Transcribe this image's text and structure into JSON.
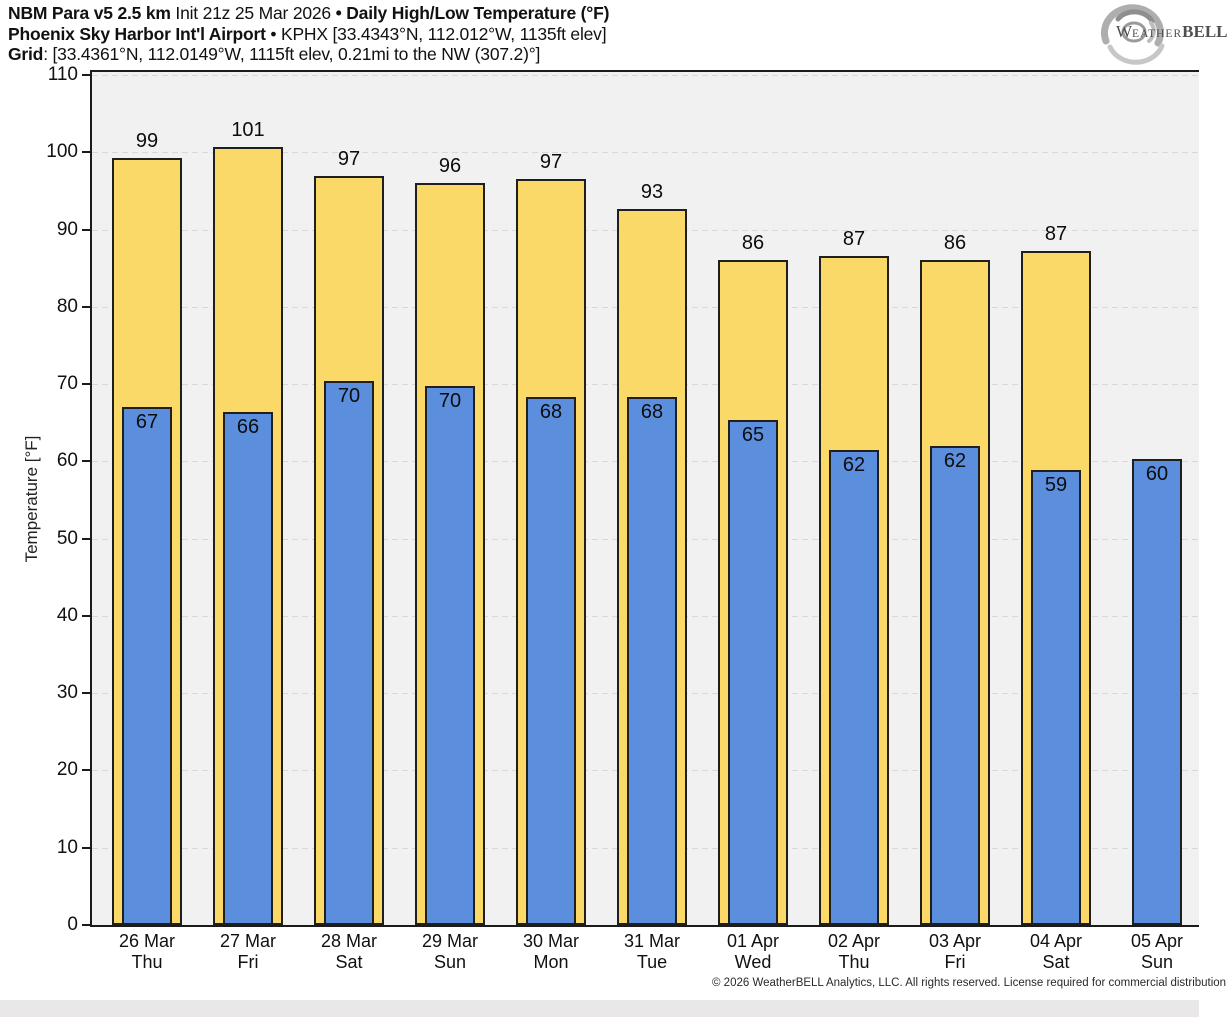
{
  "header": {
    "model": "NBM Para v5 2.5 km",
    "init": " Init 21z 25 Mar 2026 ",
    "bullet1": "•",
    "product": " Daily High/Low Temperature (°F)",
    "station": "Phoenix Sky Harbor Int'l Airport",
    "bullet2": " • ",
    "station_info": "KPHX [33.4343°N, 112.012°W, 1135ft elev]",
    "grid_label": "Grid",
    "grid_info": ": [33.4361°N, 112.0149°W, 1115ft elev, 0.21mi to the NW (307.2)°]"
  },
  "logo": {
    "w": "W",
    "eather": "EATHER",
    "bell": "BELL"
  },
  "chart_data": {
    "type": "bar",
    "title": "Daily High/Low Temperature (°F)",
    "ylabel": "Temperature [°F]",
    "ylim": [
      0,
      110
    ],
    "ytick_step": 10,
    "grid": true,
    "legend": "none",
    "categories": [
      {
        "date": "26 Mar",
        "day": "Thu"
      },
      {
        "date": "27 Mar",
        "day": "Fri"
      },
      {
        "date": "28 Mar",
        "day": "Sat"
      },
      {
        "date": "29 Mar",
        "day": "Sun"
      },
      {
        "date": "30 Mar",
        "day": "Mon"
      },
      {
        "date": "31 Mar",
        "day": "Tue"
      },
      {
        "date": "01 Apr",
        "day": "Wed"
      },
      {
        "date": "02 Apr",
        "day": "Thu"
      },
      {
        "date": "03 Apr",
        "day": "Fri"
      },
      {
        "date": "04 Apr",
        "day": "Sat"
      },
      {
        "date": "05 Apr",
        "day": "Sun"
      }
    ],
    "series": [
      {
        "name": "High",
        "color": "#fbd968",
        "labels": [
          99,
          101,
          97,
          96,
          97,
          93,
          86,
          87,
          86,
          87,
          null
        ],
        "values": [
          99.3,
          100.7,
          96.9,
          96.0,
          96.5,
          92.6,
          86.1,
          86.6,
          86.1,
          87.2,
          null
        ]
      },
      {
        "name": "Low",
        "color": "#5b8edd",
        "labels": [
          67,
          66,
          70,
          70,
          68,
          68,
          65,
          62,
          62,
          59,
          60
        ],
        "values": [
          67.0,
          66.4,
          70.4,
          69.8,
          68.3,
          68.3,
          65.4,
          61.5,
          62.0,
          58.9,
          60.3
        ]
      }
    ]
  },
  "colors": {
    "high": "#fbd968",
    "low": "#5b8edd",
    "bar_border": "#1f1f1f",
    "plot_bg": "#f2f1f1",
    "grid_line": "#d9d8d6",
    "axis": "#1b1b1b",
    "footer_strip": "#e9e7e7"
  },
  "footer": {
    "copyright": "© 2026 WeatherBELL Analytics, LLC. All rights reserved. License required for commercial distribution"
  }
}
